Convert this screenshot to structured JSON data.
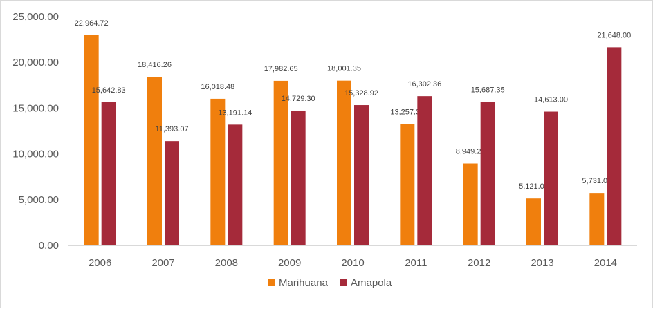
{
  "chart_data": {
    "type": "bar",
    "categories": [
      "2006",
      "2007",
      "2008",
      "2009",
      "2010",
      "2011",
      "2012",
      "2013",
      "2014"
    ],
    "series": [
      {
        "name": "Marihuana",
        "color": "#f07f0d",
        "values": [
          22964.72,
          18416.26,
          16018.48,
          17982.65,
          18001.35,
          13257.35,
          8949.24,
          5121.0,
          5731.0
        ],
        "labels": [
          "22,964.72",
          "18,416.26",
          "16,018.48",
          "17,982.65",
          "18,001.35",
          "13,257.35",
          "8,949.24",
          "5,121.00",
          "5,731.00"
        ]
      },
      {
        "name": "Amapola",
        "color": "#a52a3a",
        "values": [
          15642.83,
          11393.07,
          13191.14,
          14729.3,
          15328.92,
          16302.36,
          15687.35,
          14613.0,
          21648.0
        ],
        "labels": [
          "15,642.83",
          "11,393.07",
          "13,191.14",
          "14,729.30",
          "15,328.92",
          "16,302.36",
          "15,687.35",
          "14,613.00",
          "21,648.00"
        ]
      }
    ],
    "ylim": [
      0,
      25000
    ],
    "yticks": [
      0,
      5000,
      10000,
      15000,
      20000,
      25000
    ],
    "ytick_labels": [
      "0.00",
      "5,000.00",
      "10,000.00",
      "15,000.00",
      "20,000.00",
      "25,000.00"
    ],
    "grid": false,
    "legend_position": "bottom"
  }
}
